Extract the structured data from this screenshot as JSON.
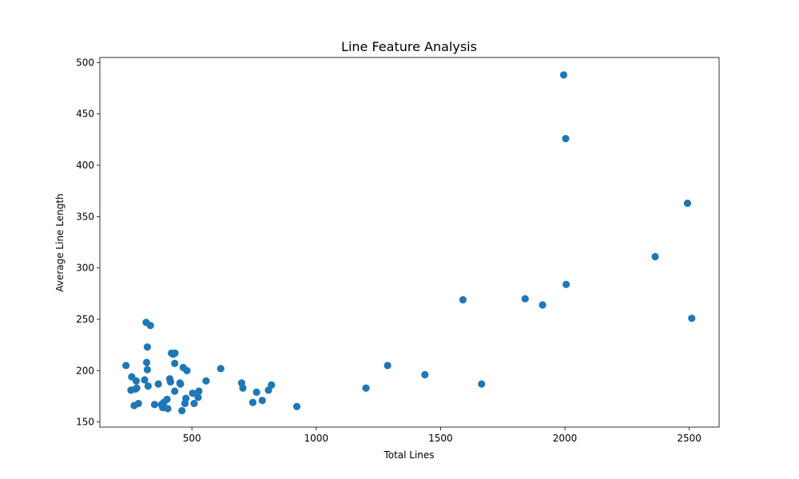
{
  "chart_data": {
    "type": "scatter",
    "title": "Line Feature Analysis",
    "xlabel": "Total Lines",
    "ylabel": "Average Line Length",
    "xlim": [
      130,
      2620
    ],
    "ylim": [
      145,
      505
    ],
    "xticks": [
      500,
      1000,
      1500,
      2000,
      2500
    ],
    "yticks": [
      150,
      200,
      250,
      300,
      350,
      400,
      450,
      500
    ],
    "grid": false,
    "marker_color": "#1f77b4",
    "series": [
      {
        "points": [
          [
            235,
            205
          ],
          [
            255,
            181
          ],
          [
            258,
            194
          ],
          [
            268,
            166
          ],
          [
            273,
            182
          ],
          [
            276,
            190
          ],
          [
            278,
            183
          ],
          [
            285,
            168
          ],
          [
            310,
            191
          ],
          [
            316,
            247
          ],
          [
            318,
            208
          ],
          [
            321,
            223
          ],
          [
            321,
            201
          ],
          [
            324,
            185
          ],
          [
            333,
            244
          ],
          [
            350,
            167
          ],
          [
            365,
            187
          ],
          [
            378,
            167
          ],
          [
            383,
            164
          ],
          [
            387,
            169
          ],
          [
            400,
            172
          ],
          [
            403,
            163
          ],
          [
            411,
            192
          ],
          [
            414,
            189
          ],
          [
            418,
            217
          ],
          [
            425,
            216
          ],
          [
            431,
            207
          ],
          [
            431,
            180
          ],
          [
            432,
            217
          ],
          [
            452,
            188
          ],
          [
            454,
            187
          ],
          [
            460,
            161
          ],
          [
            465,
            203
          ],
          [
            472,
            168
          ],
          [
            476,
            173
          ],
          [
            480,
            200
          ],
          [
            503,
            178
          ],
          [
            509,
            168
          ],
          [
            525,
            174
          ],
          [
            528,
            180
          ],
          [
            557,
            190
          ],
          [
            616,
            202
          ],
          [
            700,
            188
          ],
          [
            705,
            183
          ],
          [
            745,
            169
          ],
          [
            760,
            179
          ],
          [
            783,
            171
          ],
          [
            808,
            181
          ],
          [
            820,
            186
          ],
          [
            922,
            165
          ],
          [
            1200,
            183
          ],
          [
            1287,
            205
          ],
          [
            1437,
            196
          ],
          [
            1590,
            269
          ],
          [
            1665,
            187
          ],
          [
            1840,
            270
          ],
          [
            1910,
            264
          ],
          [
            1995,
            488
          ],
          [
            2003,
            426
          ],
          [
            2005,
            284
          ],
          [
            2363,
            311
          ],
          [
            2493,
            363
          ],
          [
            2510,
            251
          ]
        ]
      }
    ]
  }
}
